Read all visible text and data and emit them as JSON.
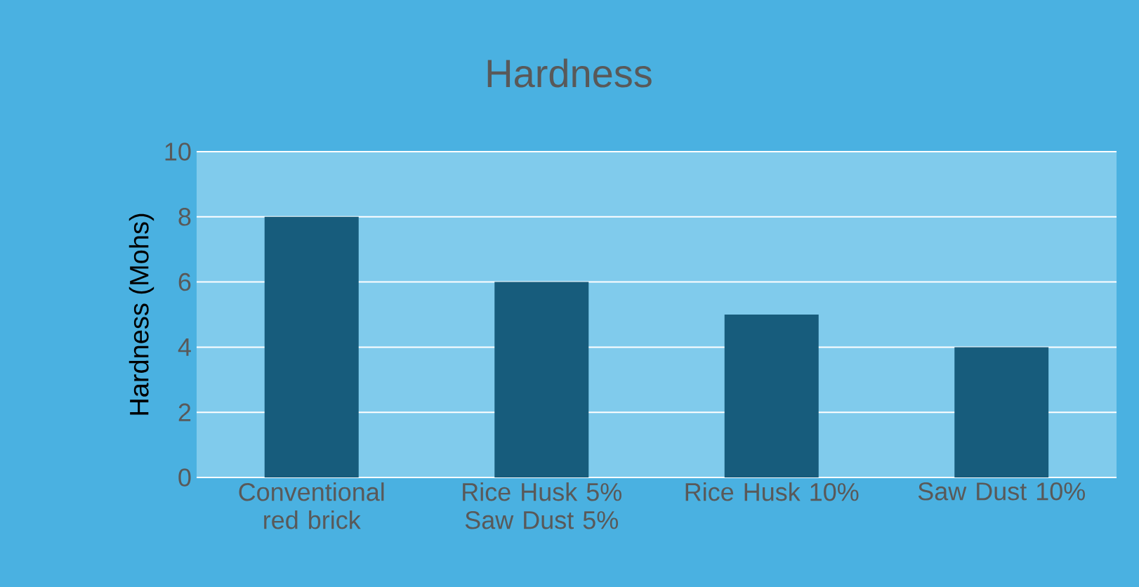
{
  "chart_data": {
    "type": "bar",
    "title": "Hardness",
    "ylabel": "Hardness (Mohs)",
    "categories": [
      "Conventional red brick",
      "Rice Husk 5% Saw Dust 5%",
      "Rice Husk 10%",
      "Saw Dust 10%"
    ],
    "values": [
      8,
      6,
      5,
      4
    ],
    "color": "#175c7c",
    "ylim": [
      0,
      10
    ],
    "yticks": [
      0,
      2,
      4,
      6,
      8,
      10
    ],
    "grid": "y"
  }
}
